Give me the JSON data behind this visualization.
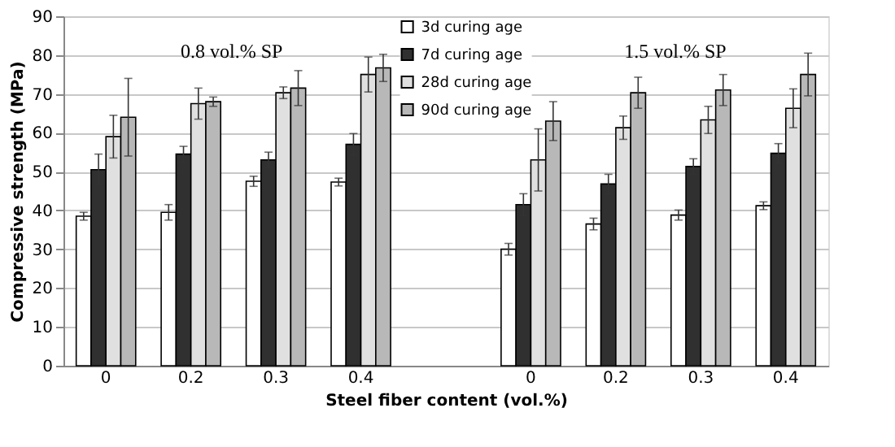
{
  "chart_data": {
    "type": "bar",
    "xlabel": "Steel fiber content (vol.%)",
    "ylabel": "Compressive strength (MPa)",
    "categories": [
      "0",
      "0.2",
      "0.3",
      "0.4",
      null,
      "0",
      "0.2",
      "0.3",
      "0.4"
    ],
    "series": [
      {
        "name": "3d curing age",
        "color": "#ffffff",
        "values": [
          38.5,
          39.5,
          47.5,
          47.3,
          null,
          30,
          36.5,
          38.8,
          41.2
        ],
        "errors": [
          1,
          2,
          1.3,
          1,
          null,
          1.5,
          1.5,
          1.3,
          1
        ]
      },
      {
        "name": "7d curing age",
        "color": "#303030",
        "values": [
          50.5,
          54.5,
          53,
          57,
          null,
          41.5,
          46.8,
          51.3,
          54.7
        ],
        "errors": [
          4,
          2,
          2,
          2.8,
          null,
          2.8,
          2.5,
          2,
          2.5
        ]
      },
      {
        "name": "28d curing age",
        "color": "#e0e0e0",
        "values": [
          59,
          67.5,
          70.3,
          75,
          null,
          53,
          61.3,
          63.3,
          66.3
        ],
        "errors": [
          5.5,
          4,
          1.5,
          4.5,
          null,
          8,
          3,
          3.5,
          5
        ]
      },
      {
        "name": "90d curing age",
        "color": "#b8b8b8",
        "values": [
          64,
          68,
          71.5,
          76.7,
          null,
          63,
          70.3,
          71,
          75
        ],
        "errors": [
          10,
          1.2,
          4.5,
          3.5,
          null,
          5,
          4,
          4,
          5.5
        ]
      }
    ],
    "annotations": [
      "0.8 vol.% SP",
      "1.5 vol.% SP"
    ],
    "ylim": [
      0,
      90
    ],
    "yticks": [
      0,
      10,
      20,
      30,
      40,
      50,
      60,
      70,
      80,
      90
    ],
    "grid": "y",
    "legend": "top"
  }
}
